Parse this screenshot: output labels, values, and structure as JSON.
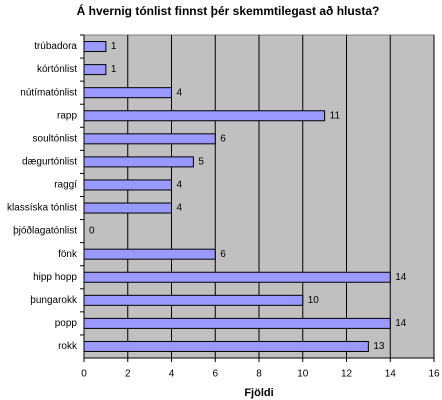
{
  "chart_data": {
    "type": "bar",
    "orientation": "horizontal",
    "title": "Á hvernig tónlist finnst þér skemmtilegast að hlusta?",
    "x_label": "Fjöldi",
    "categories": [
      "trúbadora",
      "kórtónlist",
      "nútímatónlist",
      "rapp",
      "soultónlist",
      "dægurtónlist",
      "raggí",
      "klassíska tónlist",
      "þjóðlagatónlist",
      "fönk",
      "hipp hopp",
      "þungarokk",
      "popp",
      "rokk"
    ],
    "values": [
      1,
      1,
      4,
      11,
      6,
      5,
      4,
      4,
      0,
      6,
      14,
      10,
      14,
      13
    ],
    "color": "#9999ff",
    "plot_background": "#c0c0c0",
    "xlim": [
      0,
      16
    ],
    "xticks": [
      0,
      2,
      4,
      6,
      8,
      10,
      12,
      14,
      16
    ],
    "grid": true
  }
}
